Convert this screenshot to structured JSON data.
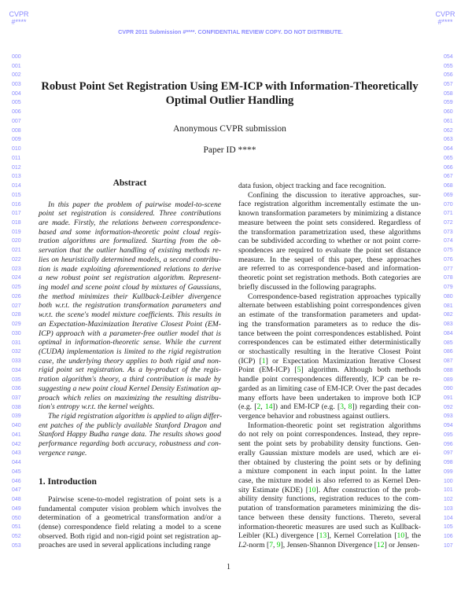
{
  "header": {
    "venue_left": "CVPR",
    "id_left": "#****",
    "venue_right": "CVPR",
    "id_right": "#****",
    "banner": "CVPR 2011 Submission #****. CONFIDENTIAL REVIEW COPY. DO NOT DISTRIBUTE."
  },
  "line_numbers": {
    "left": [
      "000",
      "001",
      "002",
      "003",
      "004",
      "005",
      "006",
      "007",
      "008",
      "009",
      "010",
      "011",
      "012",
      "013",
      "014",
      "015",
      "016",
      "017",
      "018",
      "019",
      "020",
      "021",
      "022",
      "023",
      "024",
      "025",
      "026",
      "027",
      "028",
      "029",
      "030",
      "031",
      "032",
      "033",
      "034",
      "035",
      "036",
      "037",
      "038",
      "039",
      "040",
      "041",
      "042",
      "043",
      "044",
      "045",
      "046",
      "047",
      "048",
      "049",
      "050",
      "051",
      "052",
      "053"
    ],
    "right": [
      "054",
      "055",
      "056",
      "057",
      "058",
      "059",
      "060",
      "061",
      "062",
      "063",
      "064",
      "065",
      "066",
      "067",
      "068",
      "069",
      "070",
      "071",
      "072",
      "073",
      "074",
      "075",
      "076",
      "077",
      "078",
      "079",
      "080",
      "081",
      "082",
      "083",
      "084",
      "085",
      "086",
      "087",
      "088",
      "089",
      "090",
      "091",
      "092",
      "093",
      "094",
      "095",
      "096",
      "097",
      "098",
      "099",
      "100",
      "101",
      "102",
      "103",
      "104",
      "105",
      "106",
      "107"
    ]
  },
  "paper": {
    "title_lines": [
      "Robust Point Set Registration Using EM-ICP with Information-Theoretically",
      "Optimal Outlier Handling"
    ],
    "author": "Anonymous CVPR submission",
    "paper_id": "Paper ID ****",
    "abstract": {
      "heading": "Abstract",
      "paragraphs": [
        [
          "In this paper the problem of pairwise model-to-scene",
          "point set registration is considered.  Three contributions",
          "are made.  Firstly, the relations between correspondence-",
          "based and some information-theoretic point cloud regis-",
          "tration algorithms are formalized.  Starting from the ob-",
          "servation that the outlier handling of existing methods re-",
          "lies on heuristically determined models, a second contribu-",
          "tion is made exploiting aforementioned relations to derive",
          "a new robust point set registration algorithm.  Represent-",
          "ing model and scene point cloud by mixtures of Gaussians,",
          "the method minimizes their Kullback-Leibler divergence",
          "both w.r.t. the registration transformation parameters and",
          "w.r.t. the scene's model mixture coefficients. This results in",
          "an Expectation-Maximization Iterative Closest Point (EM-",
          "ICP) approach with a parameter-free outlier model that is",
          "optimal in information-theoretic sense.  While the current",
          "(CUDA) implementation is limited to the rigid registration",
          "case, the underlying theory applies to both rigid and non-",
          "rigid point set registration.  As a by-product of the regis-",
          "tration algorithm's theory, a third contribution is made by",
          "suggesting a new point cloud Kernel Density Estimation ap-",
          "proach which relies on maximizing the resulting distribu-",
          "tion's entropy w.r.t. the kernel weights."
        ],
        [
          "The rigid registration algorithm is applied to align differ-",
          "ent patches of the publicly available Stanford Dragon and",
          "Stanford Happy Budha range data. The results shows good",
          "performance regarding both accuracy, robustness and con-",
          "vergence range."
        ]
      ]
    },
    "introduction": {
      "heading": "1. Introduction",
      "paragraphs": [
        [
          "Pairwise scene-to-model registration of point sets is a",
          "fundamental computer vision problem which involves the",
          "determination of a geometrical transformation and/or a",
          "(dense) correspondence field relating a model to a scene",
          "observed. Both rigid and non-rigid point set registration ap-",
          "proaches are used in several applications including range"
        ]
      ]
    },
    "right_column": {
      "paragraphs": [
        [
          "data fusion, object tracking and face recognition."
        ],
        [
          "Confining the discussion to iterative approaches, sur-",
          "face registration algorithm incrementally estimate the un-",
          "known transformation parameters by minimizing a distance",
          "measure between the point sets considered. Regardless of",
          "the transformation parametrization used, these algorithms",
          "can be subdivided according to whether or not point corre-",
          "spondences are required to evaluate the point set distance",
          "measure.  In the sequel of this paper, these approaches",
          "are referred to as correspondence-based and information-",
          "theoretic point set registration methods. Both categories are",
          "briefly discussed in the following paragraphs."
        ],
        [
          "Correspondence-based registration approaches typically",
          "alternate between establishing point correspondences given",
          "an estimate of the transformation parameters and updat-",
          "ing the transformation parameters as to reduce the dis-",
          "tance between the point correspondences established. Point",
          "correspondences can be estimated either deterministically",
          "or stochastically resulting in the Iterative Closest Point",
          "(ICP) [1] or Expectation Maximization Iterative Closest",
          "Point (EM-ICP) [5] algorithm.  Although both methods",
          "handle point correspondences differently, ICP can be re-",
          "garded as an limiting case of EM-ICP. Over the past decades",
          "many efforts have been undertaken to improve both ICP",
          "(e.g. [2, 14]) and EM-ICP (e.g. [3, 8]) regarding their con-",
          "vergence behavior and robustness against outliers."
        ],
        [
          "Information-theoretic point set registration algorithms",
          "do not rely on point correspondences.  Instead, they repre-",
          "sent the point sets by probability density functions. Gen-",
          "erally Gaussian mixture models are used, which are ei-",
          "ther obtained by clustering the point sets or by defining",
          "a mixture component in each input point.  In the latter",
          "case, the mixture model is also referred to as Kernel Den-",
          "sity Estimate (KDE) [10].  After construction of the prob-",
          "ability density functions, registration reduces to the com-",
          "putation of transformation parameters minimizing the dis-",
          "tance between these density functions.  Thereto, several",
          "information-theoretic measures are used such as Kullback-",
          "Leibler (KL) divergence [13], Kernel Correlation [10], the",
          "L2-norm [7, 9], Jensen-Shannon Divergence [12] or Jensen-"
        ]
      ]
    },
    "page_number": "1"
  },
  "colors": {
    "line_numbers": "#8a8aff",
    "citations": "#00cc00",
    "text": "#1a1a1a"
  }
}
